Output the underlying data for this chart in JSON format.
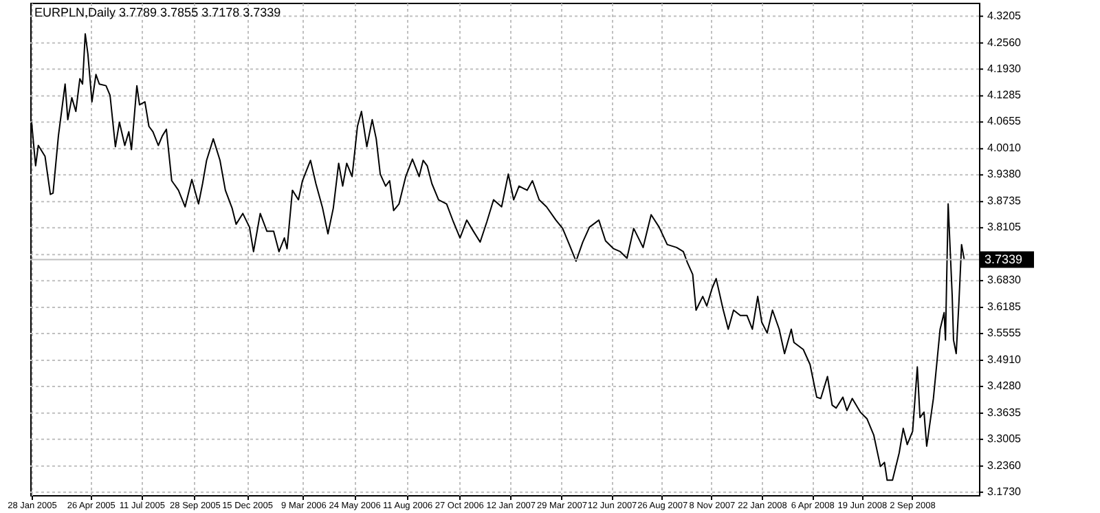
{
  "chart_data": {
    "type": "line",
    "title": "EURPLN,Daily  3.7789 3.7855 3.7178 3.7339",
    "x": [
      "2005-01-28",
      "2005-02-03",
      "2005-02-07",
      "2005-02-17",
      "2005-02-25",
      "2005-03-01",
      "2005-03-09",
      "2005-03-15",
      "2005-03-19",
      "2005-03-23",
      "2005-03-29",
      "2005-04-04",
      "2005-04-10",
      "2005-04-14",
      "2005-04-18",
      "2005-04-22",
      "2005-04-28",
      "2005-05-04",
      "2005-05-09",
      "2005-05-19",
      "2005-05-25",
      "2005-06-02",
      "2005-06-08",
      "2005-06-16",
      "2005-06-22",
      "2005-06-26",
      "2005-07-04",
      "2005-07-08",
      "2005-07-16",
      "2005-07-22",
      "2005-07-28",
      "2005-08-05",
      "2005-08-11",
      "2005-08-17",
      "2005-08-25",
      "2005-09-04",
      "2005-09-14",
      "2005-09-24",
      "2005-10-04",
      "2005-10-10",
      "2005-10-16",
      "2005-10-26",
      "2005-11-05",
      "2005-11-13",
      "2005-11-23",
      "2005-11-29",
      "2005-12-09",
      "2005-12-19",
      "2005-12-25",
      "2006-01-04",
      "2006-01-14",
      "2006-01-24",
      "2006-02-01",
      "2006-02-09",
      "2006-02-13",
      "2006-02-21",
      "2006-03-02",
      "2006-03-08",
      "2006-03-20",
      "2006-03-28",
      "2006-04-07",
      "2006-04-15",
      "2006-04-23",
      "2006-05-01",
      "2006-05-07",
      "2006-05-13",
      "2006-05-21",
      "2006-05-29",
      "2006-06-04",
      "2006-06-12",
      "2006-06-20",
      "2006-06-26",
      "2006-07-02",
      "2006-07-10",
      "2006-07-16",
      "2006-07-22",
      "2006-07-30",
      "2006-08-09",
      "2006-08-19",
      "2006-08-29",
      "2006-09-04",
      "2006-09-10",
      "2006-09-17",
      "2006-09-27",
      "2006-10-09",
      "2006-10-19",
      "2006-10-29",
      "2006-11-08",
      "2006-11-18",
      "2006-11-28",
      "2006-12-08",
      "2006-12-18",
      "2006-12-30",
      "2007-01-09",
      "2007-01-17",
      "2007-01-25",
      "2007-02-06",
      "2007-02-14",
      "2007-02-24",
      "2007-03-07",
      "2007-03-21",
      "2007-03-31",
      "2007-04-10",
      "2007-04-20",
      "2007-04-30",
      "2007-05-10",
      "2007-05-24",
      "2007-06-03",
      "2007-06-15",
      "2007-06-25",
      "2007-07-05",
      "2007-07-15",
      "2007-07-29",
      "2007-08-10",
      "2007-08-22",
      "2007-09-03",
      "2007-09-17",
      "2007-09-27",
      "2007-10-03",
      "2007-10-11",
      "2007-10-16",
      "2007-10-26",
      "2007-11-01",
      "2007-11-09",
      "2007-11-15",
      "2007-11-25",
      "2007-12-03",
      "2007-12-11",
      "2007-12-21",
      "2007-12-31",
      "2008-01-08",
      "2008-01-16",
      "2008-01-22",
      "2008-01-30",
      "2008-02-07",
      "2008-02-17",
      "2008-02-25",
      "2008-03-06",
      "2008-03-10",
      "2008-03-24",
      "2008-04-03",
      "2008-04-13",
      "2008-04-19",
      "2008-04-29",
      "2008-05-06",
      "2008-05-12",
      "2008-05-22",
      "2008-05-28",
      "2008-06-05",
      "2008-06-17",
      "2008-06-27",
      "2008-07-07",
      "2008-07-17",
      "2008-07-23",
      "2008-07-27",
      "2008-08-04",
      "2008-08-14",
      "2008-08-20",
      "2008-08-26",
      "2008-09-03",
      "2008-09-10",
      "2008-09-14",
      "2008-09-20",
      "2008-09-24",
      "2008-10-04",
      "2008-10-14",
      "2008-10-20",
      "2008-10-22",
      "2008-10-26",
      "2008-11-01",
      "2008-11-03",
      "2008-11-07",
      "2008-11-11",
      "2008-11-15",
      "2008-11-19"
    ],
    "series": [
      {
        "color": "#000000",
        "values": [
          4.065,
          3.96,
          4.009,
          3.983,
          3.891,
          3.894,
          4.032,
          4.107,
          4.157,
          4.071,
          4.124,
          4.091,
          4.17,
          4.157,
          4.278,
          4.229,
          4.114,
          4.18,
          4.157,
          4.153,
          4.13,
          4.006,
          4.065,
          4.009,
          4.042,
          3.999,
          4.153,
          4.107,
          4.114,
          4.055,
          4.042,
          4.009,
          4.032,
          4.048,
          3.924,
          3.901,
          3.861,
          3.927,
          3.868,
          3.917,
          3.973,
          4.025,
          3.973,
          3.901,
          3.858,
          3.819,
          3.845,
          3.812,
          3.753,
          3.845,
          3.802,
          3.802,
          3.753,
          3.786,
          3.76,
          3.901,
          3.878,
          3.924,
          3.973,
          3.917,
          3.858,
          3.796,
          3.858,
          3.966,
          3.911,
          3.966,
          3.934,
          4.055,
          4.091,
          4.006,
          4.071,
          4.025,
          3.94,
          3.911,
          3.924,
          3.852,
          3.868,
          3.934,
          3.976,
          3.934,
          3.973,
          3.96,
          3.917,
          3.878,
          3.868,
          3.825,
          3.786,
          3.829,
          3.802,
          3.776,
          3.825,
          3.878,
          3.861,
          3.94,
          3.878,
          3.911,
          3.901,
          3.924,
          3.878,
          3.861,
          3.829,
          3.809,
          3.77,
          3.73,
          3.776,
          3.812,
          3.829,
          3.779,
          3.76,
          3.753,
          3.737,
          3.809,
          3.763,
          3.842,
          3.812,
          3.77,
          3.763,
          3.753,
          3.727,
          3.698,
          3.612,
          3.645,
          3.622,
          3.665,
          3.688,
          3.616,
          3.566,
          3.612,
          3.599,
          3.599,
          3.566,
          3.645,
          3.583,
          3.557,
          3.612,
          3.566,
          3.507,
          3.566,
          3.534,
          3.517,
          3.481,
          3.402,
          3.399,
          3.452,
          3.383,
          3.376,
          3.402,
          3.37,
          3.399,
          3.366,
          3.35,
          3.311,
          3.235,
          3.245,
          3.202,
          3.202,
          3.268,
          3.327,
          3.288,
          3.32,
          3.475,
          3.353,
          3.366,
          3.284,
          3.399,
          3.566,
          3.606,
          3.54,
          3.868,
          3.648,
          3.54,
          3.507,
          3.629,
          3.77,
          3.7339
        ]
      }
    ],
    "xlim": [
      "2005-01-26",
      "2008-12-11"
    ],
    "xticks": [
      {
        "value": "2005-01-28",
        "label": "28 Jan 2005"
      },
      {
        "value": "2005-04-26",
        "label": "26 Apr 2005"
      },
      {
        "value": "2005-07-11",
        "label": "11 Jul 2005"
      },
      {
        "value": "2005-09-28",
        "label": "28 Sep 2005"
      },
      {
        "value": "2005-12-15",
        "label": "15 Dec 2005"
      },
      {
        "value": "2006-03-09",
        "label": "9 Mar 2006"
      },
      {
        "value": "2006-05-24",
        "label": "24 May 2006"
      },
      {
        "value": "2006-08-11",
        "label": "11 Aug 2006"
      },
      {
        "value": "2006-10-27",
        "label": "27 Oct 2006"
      },
      {
        "value": "2007-01-12",
        "label": "12 Jan 2007"
      },
      {
        "value": "2007-03-29",
        "label": "29 Mar 2007"
      },
      {
        "value": "2007-06-12",
        "label": "12 Jun 2007"
      },
      {
        "value": "2007-08-26",
        "label": "26 Aug 2007"
      },
      {
        "value": "2007-11-08",
        "label": "8 Nov 2007"
      },
      {
        "value": "2008-01-22",
        "label": "22 Jan 2008"
      },
      {
        "value": "2008-04-06",
        "label": "6 Apr 2008"
      },
      {
        "value": "2008-06-19",
        "label": "19 Jun 2008"
      },
      {
        "value": "2008-09-02",
        "label": "2 Sep 2008"
      }
    ],
    "ylim": [
      3.166,
      4.353
    ],
    "yticks": [
      4.3205,
      {
        "value": 4.256,
        "label": "4.2560"
      },
      {
        "value": 4.193,
        "label": "4.1930"
      },
      4.1285,
      4.0655,
      {
        "value": 4.001,
        "label": "4.0010"
      },
      {
        "value": 3.938,
        "label": "3.9380"
      },
      3.8735,
      3.8105,
      {
        "value": 3.746,
        "label": null
      },
      {
        "value": 3.683,
        "label": "3.6830"
      },
      3.6185,
      3.5555,
      {
        "value": 3.491,
        "label": "3.4910"
      },
      {
        "value": 3.428,
        "label": "3.4280"
      },
      3.3635,
      3.3005,
      {
        "value": 3.236,
        "label": "3.2360"
      },
      {
        "value": 3.173,
        "label": "3.1730"
      }
    ],
    "grid": true,
    "ref_lines": [
      {
        "axis": "y",
        "value": 3.7339,
        "label": "3.7339",
        "color": "#c0c0c0"
      }
    ]
  }
}
